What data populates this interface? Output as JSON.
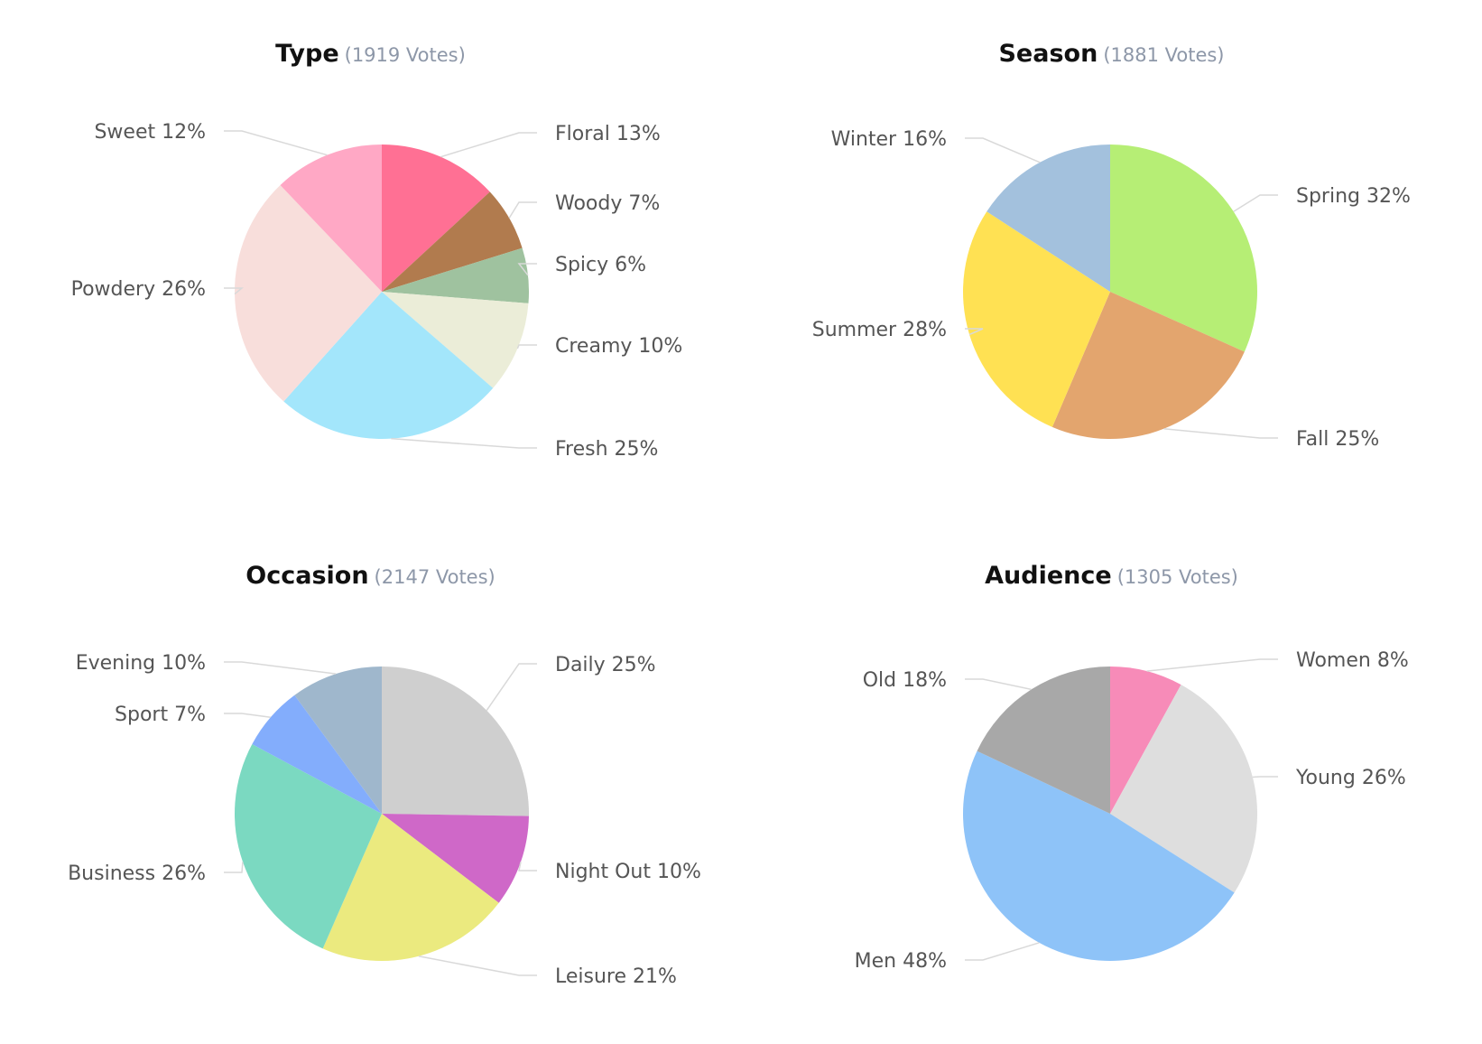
{
  "chart_data": [
    {
      "type": "pie",
      "title": "Type",
      "subtitle": "(1919 Votes)",
      "labels": [
        "Floral",
        "Woody",
        "Spicy",
        "Creamy",
        "Fresh",
        "Powdery",
        "Sweet"
      ],
      "values": [
        13,
        7,
        6,
        10,
        25,
        26,
        12
      ],
      "value_suffix": "%",
      "colors": [
        "#ff7094",
        "#b17b4e",
        "#9fc29f",
        "#ebedd8",
        "#a3e6fb",
        "#f8dedb",
        "#ffa8c5"
      ]
    },
    {
      "type": "pie",
      "title": "Season",
      "subtitle": "(1881 Votes)",
      "labels": [
        "Spring",
        "Fall",
        "Summer",
        "Winter"
      ],
      "values": [
        32,
        25,
        28,
        16
      ],
      "value_suffix": "%",
      "colors": [
        "#b6ee75",
        "#e3a56e",
        "#ffe153",
        "#a3c1dd"
      ]
    },
    {
      "type": "pie",
      "title": "Occasion",
      "subtitle": "(2147 Votes)",
      "labels": [
        "Daily",
        "Night Out",
        "Leisure",
        "Business",
        "Sport",
        "Evening"
      ],
      "values": [
        25,
        10,
        21,
        26,
        7,
        10
      ],
      "value_suffix": "%",
      "colors": [
        "#cfcfcf",
        "#cf68c8",
        "#ebea7f",
        "#7bd9c1",
        "#83adfc",
        "#9fb7cc"
      ]
    },
    {
      "type": "pie",
      "title": "Audience",
      "subtitle": "(1305 Votes)",
      "labels": [
        "Women",
        "Young",
        "Men",
        "Old"
      ],
      "values": [
        8,
        26,
        48,
        18
      ],
      "value_suffix": "%",
      "colors": [
        "#f78bb8",
        "#dedede",
        "#8ec3f8",
        "#a8a8a8"
      ]
    }
  ]
}
